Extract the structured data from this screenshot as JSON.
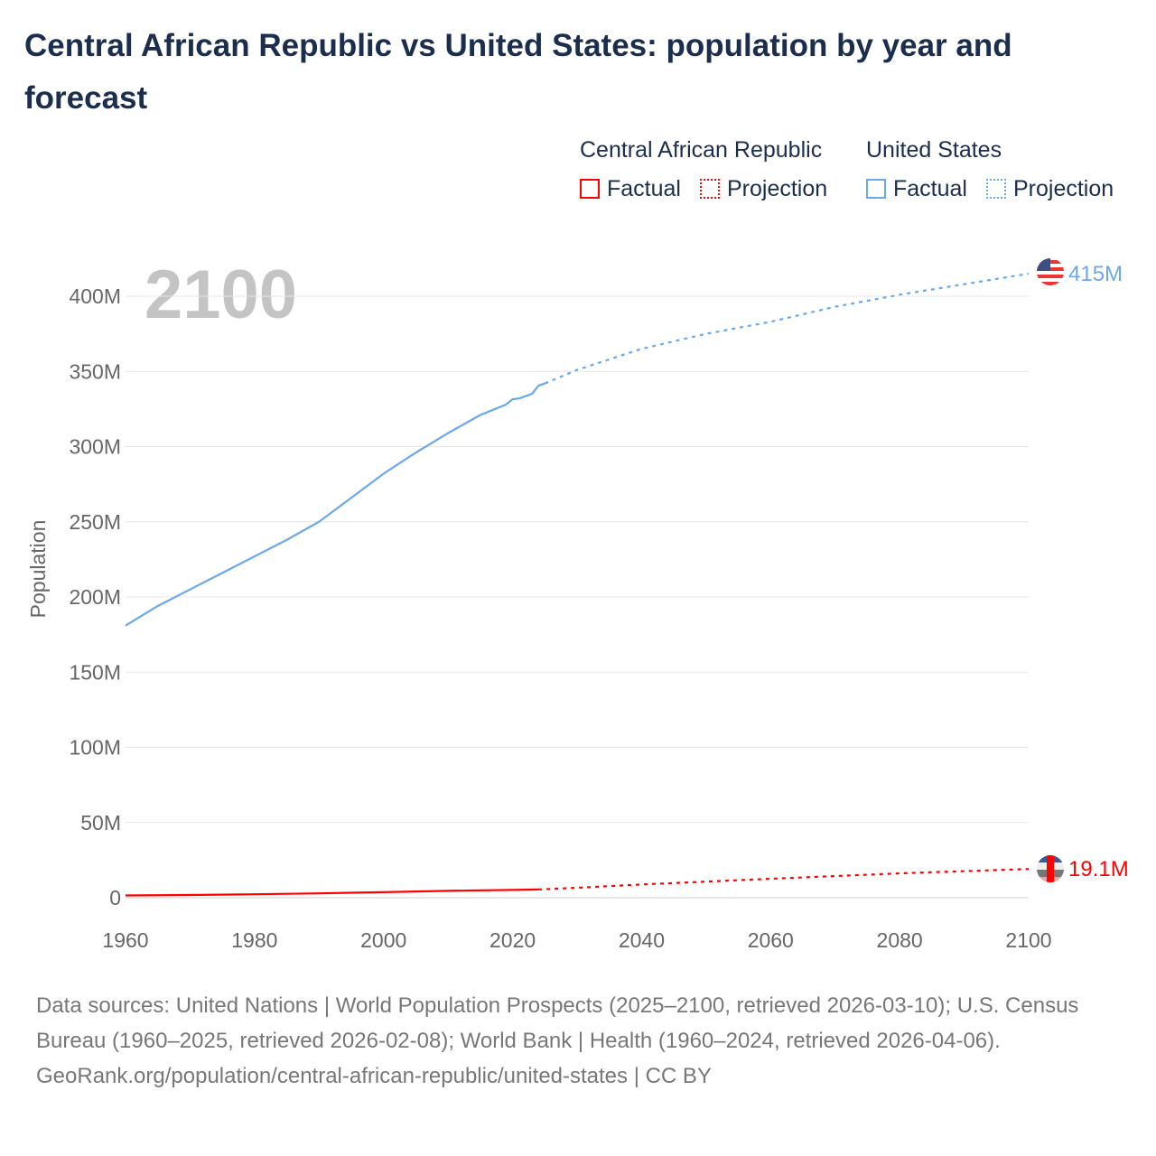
{
  "title": "Central African Republic vs United States: population by year and forecast",
  "legend": {
    "groups": [
      {
        "name": "Central African Republic",
        "factual": "Factual",
        "projection": "Projection",
        "color": "#ff0000"
      },
      {
        "name": "United States",
        "factual": "Factual",
        "projection": "Projection",
        "color": "#6aa8e8"
      }
    ]
  },
  "year_watermark": "2100",
  "chart_data": {
    "type": "line",
    "title": "Central African Republic vs United States: population by year and forecast",
    "xlabel": "",
    "ylabel": "Population",
    "xlim": [
      1960,
      2100
    ],
    "ylim": [
      0,
      415
    ],
    "x_ticks": [
      "1960",
      "1980",
      "2000",
      "2020",
      "2040",
      "2060",
      "2080",
      "2100"
    ],
    "y_ticks": [
      "0",
      "50M",
      "100M",
      "150M",
      "200M",
      "250M",
      "300M",
      "350M",
      "400M"
    ],
    "grid": true,
    "series": [
      {
        "name": "United States",
        "factual": [
          [
            1960,
            181
          ],
          [
            1965,
            194
          ],
          [
            1970,
            205
          ],
          [
            1975,
            216
          ],
          [
            1980,
            227
          ],
          [
            1985,
            238
          ],
          [
            1990,
            250
          ],
          [
            1995,
            266
          ],
          [
            2000,
            282
          ],
          [
            2005,
            296
          ],
          [
            2010,
            309
          ],
          [
            2015,
            321
          ],
          [
            2019,
            328
          ],
          [
            2020,
            331.5
          ],
          [
            2021,
            332
          ],
          [
            2023,
            335
          ],
          [
            2024,
            340.5
          ],
          [
            2025,
            342
          ]
        ],
        "projection": [
          [
            2025,
            342
          ],
          [
            2030,
            351
          ],
          [
            2040,
            365
          ],
          [
            2050,
            375
          ],
          [
            2060,
            383
          ],
          [
            2070,
            393
          ],
          [
            2080,
            401
          ],
          [
            2090,
            408
          ],
          [
            2100,
            415
          ]
        ],
        "end_label": "415M",
        "color": "#6aa8e8"
      },
      {
        "name": "Central African Republic",
        "factual": [
          [
            1960,
            1.5
          ],
          [
            1970,
            1.8
          ],
          [
            1980,
            2.3
          ],
          [
            1990,
            2.9
          ],
          [
            2000,
            3.7
          ],
          [
            2010,
            4.6
          ],
          [
            2020,
            5.2
          ],
          [
            2024,
            5.5
          ]
        ],
        "projection": [
          [
            2024,
            5.5
          ],
          [
            2030,
            6.6
          ],
          [
            2040,
            8.8
          ],
          [
            2060,
            12.6
          ],
          [
            2080,
            16.2
          ],
          [
            2100,
            19.1
          ]
        ],
        "end_label": "19.1M",
        "color": "#ff0000"
      }
    ]
  },
  "footer": {
    "sources": "Data sources: United Nations | World Population Prospects (2025–2100, retrieved 2026-03-10); U.S. Census Bureau (1960–2025, retrieved 2026-02-08); World Bank | Health (1960–2024, retrieved 2026-04-06).",
    "link": "GeoRank.org/population/central-african-republic/united-states | CC BY"
  }
}
